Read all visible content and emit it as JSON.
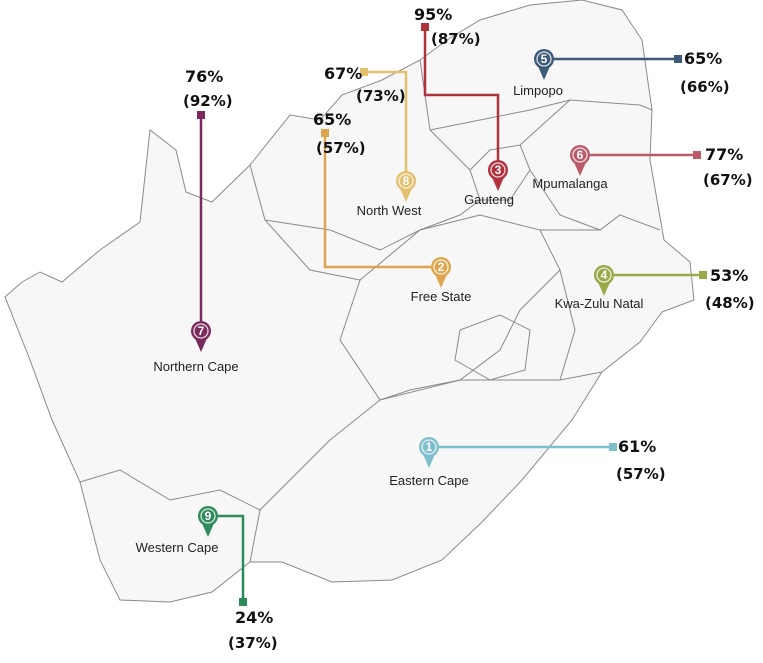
{
  "provinces": [
    {
      "num": "1",
      "name": "Eastern Cape",
      "value": "61%",
      "previous": "(57%)",
      "color": "#7dbfcc"
    },
    {
      "num": "2",
      "name": "Free State",
      "value": "65%",
      "previous": "(57%)",
      "color": "#dea64c"
    },
    {
      "num": "3",
      "name": "Gauteng",
      "value": "95%",
      "previous": "(87%)",
      "color": "#b0323c"
    },
    {
      "num": "4",
      "name": "Kwa-Zulu Natal",
      "value": "53%",
      "previous": "(48%)",
      "color": "#9aa84a"
    },
    {
      "num": "5",
      "name": "Limpopo",
      "value": "65%",
      "previous": "(66%)",
      "color": "#3e5a78"
    },
    {
      "num": "6",
      "name": "Mpumalanga",
      "value": "77%",
      "previous": "(67%)",
      "color": "#b85a68"
    },
    {
      "num": "7",
      "name": "Northern Cape",
      "value": "76%",
      "previous": "(92%)",
      "color": "#7a2a5c"
    },
    {
      "num": "8",
      "name": "North West",
      "value": "67%",
      "previous": "(73%)",
      "color": "#e4c06c"
    },
    {
      "num": "9",
      "name": "Western Cape",
      "value": "24%",
      "previous": "(37%)",
      "color": "#2e8a5a"
    }
  ]
}
